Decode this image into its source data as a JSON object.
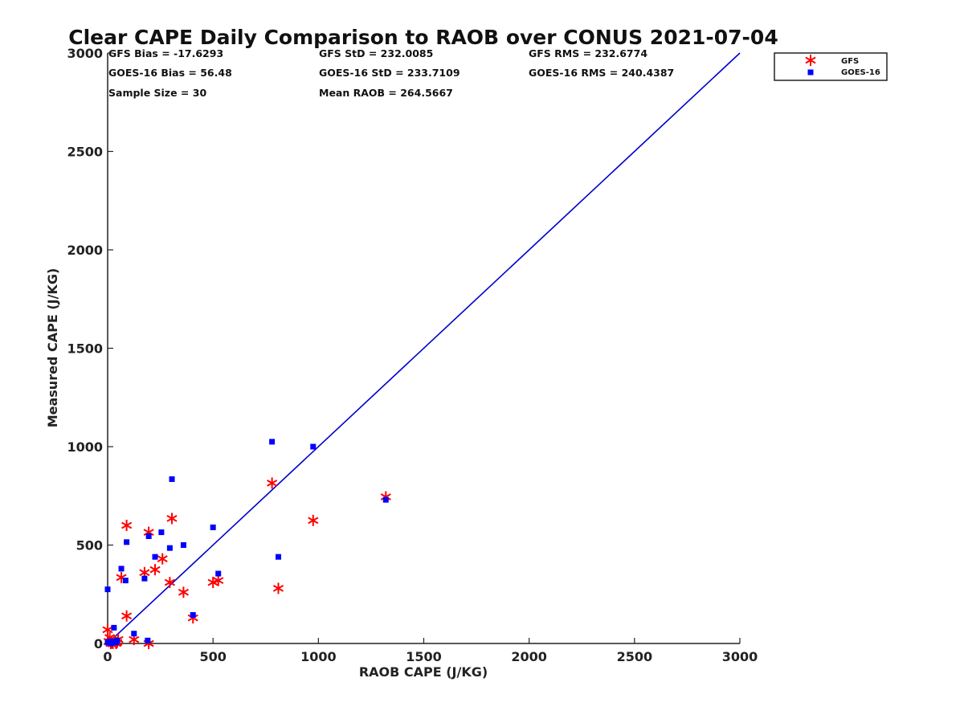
{
  "chart_data": {
    "type": "scatter",
    "title": "Clear CAPE Daily Comparison to RAOB over CONUS 2021-07-04",
    "xlabel": "RAOB CAPE (J/KG)",
    "ylabel": "Measured CAPE (J/KG)",
    "xlim": [
      0,
      3000
    ],
    "ylim": [
      0,
      3000
    ],
    "xticks": [
      "0",
      "500",
      "1000",
      "1500",
      "2000",
      "2500",
      "3000"
    ],
    "yticks": [
      "0",
      "500",
      "1000",
      "1500",
      "2000",
      "2500",
      "3000"
    ],
    "grid": false,
    "legend_position": "top-right",
    "stats": [
      "GFS Bias = -17.6293",
      "GFS StD = 232.0085",
      "GFS RMS = 232.6774",
      "GOES-16 Bias = 56.48",
      "GOES-16 StD = 233.7109",
      "GOES-16 RMS = 240.4387",
      "Sample Size = 30",
      "Mean RAOB = 264.5667"
    ],
    "reference_line": {
      "x": [
        0,
        3000
      ],
      "y": [
        0,
        3000
      ],
      "color": "#0000cc"
    },
    "series": [
      {
        "name": "GFS",
        "marker": "asterisk",
        "color": "#ff0000",
        "x": [
          0,
          5,
          10,
          15,
          20,
          25,
          35,
          40,
          45,
          50,
          65,
          90,
          90,
          125,
          175,
          195,
          195,
          225,
          260,
          295,
          305,
          360,
          405,
          500,
          525,
          780,
          810,
          975,
          1320
        ],
        "y": [
          70,
          10,
          30,
          0,
          5,
          0,
          10,
          0,
          5,
          20,
          335,
          140,
          600,
          20,
          360,
          0,
          565,
          375,
          430,
          310,
          635,
          260,
          130,
          310,
          320,
          815,
          280,
          625,
          745
        ]
      },
      {
        "name": "GOES-16",
        "marker": "square",
        "color": "#0000ff",
        "x": [
          0,
          0,
          10,
          15,
          25,
          30,
          40,
          45,
          65,
          85,
          90,
          125,
          175,
          190,
          195,
          225,
          255,
          295,
          305,
          360,
          405,
          500,
          525,
          780,
          810,
          975,
          1320
        ],
        "y": [
          275,
          5,
          10,
          0,
          10,
          80,
          5,
          15,
          380,
          320,
          515,
          50,
          330,
          15,
          545,
          440,
          565,
          485,
          835,
          500,
          145,
          590,
          355,
          1025,
          440,
          1000,
          730
        ]
      }
    ]
  }
}
